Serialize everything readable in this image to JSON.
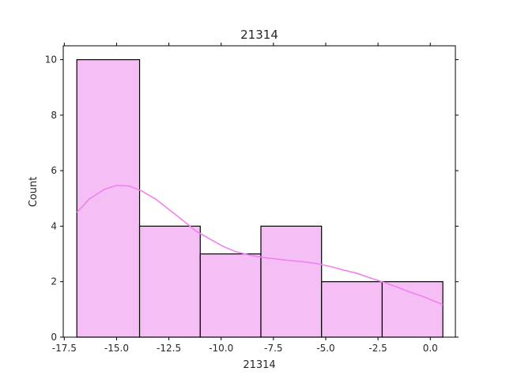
{
  "chart_data": {
    "type": "bar",
    "subtype": "histogram-with-kde",
    "title": "21314",
    "xlabel": "21314",
    "ylabel": "Count",
    "xlim": [
      -17.55,
      1.2
    ],
    "ylim": [
      0,
      10.5
    ],
    "xticks": [
      -17.5,
      -15.0,
      -12.5,
      -10.0,
      -7.5,
      -5.0,
      -2.5,
      0.0
    ],
    "xtick_labels": [
      "-17.5",
      "-15.0",
      "-12.5",
      "-10.0",
      "-7.5",
      "-5.0",
      "-2.5",
      "0.0"
    ],
    "yticks": [
      0,
      2,
      4,
      6,
      8,
      10
    ],
    "ytick_labels": [
      "0",
      "2",
      "4",
      "6",
      "8",
      "10"
    ],
    "bins": [
      {
        "start": -16.9,
        "end": -13.9,
        "count": 10
      },
      {
        "start": -13.9,
        "end": -11.0,
        "count": 4
      },
      {
        "start": -11.0,
        "end": -8.1,
        "count": 3
      },
      {
        "start": -8.1,
        "end": -5.2,
        "count": 4
      },
      {
        "start": -5.2,
        "end": -2.3,
        "count": 2
      },
      {
        "start": -2.3,
        "end": 0.6,
        "count": 2
      }
    ],
    "kde": {
      "x": [
        -16.9,
        -16.3,
        -15.6,
        -15.0,
        -14.4,
        -13.8,
        -13.1,
        -12.5,
        -11.8,
        -11.2,
        -10.5,
        -9.9,
        -9.3,
        -8.6,
        -8.0,
        -7.4,
        -6.7,
        -6.1,
        -5.4,
        -4.8,
        -4.2,
        -3.5,
        -2.9,
        -2.2,
        -1.6,
        -1.0,
        -0.3,
        0.6
      ],
      "y": [
        4.5,
        4.98,
        5.32,
        5.47,
        5.45,
        5.27,
        4.96,
        4.6,
        4.19,
        3.82,
        3.52,
        3.27,
        3.08,
        2.95,
        2.87,
        2.82,
        2.76,
        2.72,
        2.65,
        2.55,
        2.43,
        2.3,
        2.14,
        1.97,
        1.81,
        1.63,
        1.45,
        1.17
      ]
    },
    "colors": {
      "bar_fill": "#f5bff5",
      "bar_edge": "#000000",
      "kde_line": "#ee82ee"
    },
    "grid": false
  }
}
